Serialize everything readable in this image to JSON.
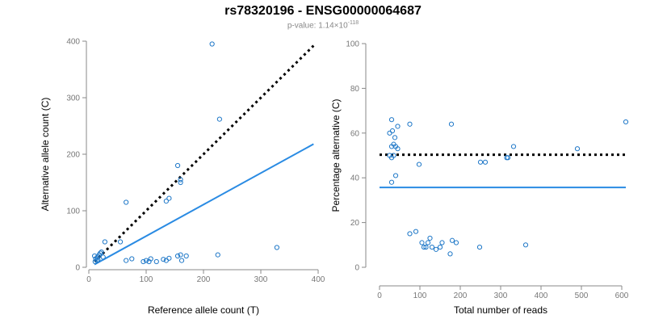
{
  "title": "rs78320196 - ENSG00000064687",
  "subtitle": {
    "prefix": "p-value: 1.14×10",
    "exponent": "-118"
  },
  "colors": {
    "points": "#1f78c8",
    "fit_line": "#2a8be3",
    "reference_line": "#000000",
    "axis": "#888888"
  },
  "chart_data": [
    {
      "type": "scatter",
      "xlabel": "Reference allele count (T)",
      "ylabel": "Alternative allele count (C)",
      "xlim": [
        0,
        400
      ],
      "ylim": [
        0,
        400
      ],
      "xticks": [
        "0",
        "100",
        "200",
        "300",
        "400"
      ],
      "yticks": [
        "0",
        "100",
        "200",
        "300",
        "400"
      ],
      "points": [
        [
          215,
          395
        ],
        [
          228,
          262
        ],
        [
          155,
          180
        ],
        [
          160,
          155
        ],
        [
          160,
          150
        ],
        [
          140,
          122
        ],
        [
          135,
          117
        ],
        [
          65,
          115
        ],
        [
          28,
          45
        ],
        [
          55,
          45
        ],
        [
          10,
          20
        ],
        [
          12,
          15
        ],
        [
          15,
          18
        ],
        [
          18,
          22
        ],
        [
          20,
          25
        ],
        [
          22,
          27
        ],
        [
          14,
          12
        ],
        [
          11,
          10
        ],
        [
          16,
          13
        ],
        [
          25,
          18
        ],
        [
          65,
          12
        ],
        [
          75,
          15
        ],
        [
          95,
          10
        ],
        [
          100,
          12
        ],
        [
          105,
          10
        ],
        [
          108,
          15
        ],
        [
          118,
          10
        ],
        [
          130,
          14
        ],
        [
          135,
          12
        ],
        [
          140,
          16
        ],
        [
          155,
          20
        ],
        [
          160,
          22
        ],
        [
          162,
          12
        ],
        [
          170,
          20
        ],
        [
          225,
          22
        ],
        [
          328,
          35
        ]
      ],
      "lines": [
        {
          "style": "dotted",
          "color": "#000000",
          "x": [
            10,
            392
          ],
          "y": [
            10,
            392
          ]
        },
        {
          "style": "solid",
          "color": "#2a8be3",
          "x": [
            10,
            392
          ],
          "y": [
            5,
            218
          ]
        }
      ]
    },
    {
      "type": "scatter",
      "xlabel": "Total number of reads",
      "ylabel": "Percentage alternative (C)",
      "xlim": [
        0,
        600
      ],
      "ylim": [
        0,
        100
      ],
      "xticks": [
        "0",
        "100",
        "200",
        "300",
        "400",
        "500",
        "600"
      ],
      "yticks": [
        "0",
        "20",
        "40",
        "60",
        "80",
        "100"
      ],
      "points": [
        [
          30,
          66
        ],
        [
          25,
          60
        ],
        [
          32,
          61
        ],
        [
          38,
          58
        ],
        [
          45,
          63
        ],
        [
          30,
          54
        ],
        [
          35,
          55
        ],
        [
          40,
          54
        ],
        [
          45,
          53
        ],
        [
          25,
          50
        ],
        [
          30,
          49
        ],
        [
          35,
          50
        ],
        [
          40,
          41
        ],
        [
          30,
          38
        ],
        [
          75,
          64
        ],
        [
          178,
          64
        ],
        [
          98,
          46
        ],
        [
          250,
          47
        ],
        [
          262,
          47
        ],
        [
          315,
          49
        ],
        [
          318,
          49
        ],
        [
          332,
          54
        ],
        [
          490,
          53
        ],
        [
          610,
          65
        ],
        [
          75,
          15
        ],
        [
          90,
          16
        ],
        [
          105,
          11
        ],
        [
          110,
          9
        ],
        [
          115,
          9
        ],
        [
          120,
          11
        ],
        [
          125,
          13
        ],
        [
          130,
          9
        ],
        [
          140,
          8
        ],
        [
          150,
          9
        ],
        [
          155,
          11
        ],
        [
          175,
          6
        ],
        [
          180,
          12
        ],
        [
          190,
          11
        ],
        [
          248,
          9
        ],
        [
          362,
          10
        ]
      ],
      "lines": [
        {
          "style": "dotted",
          "color": "#000000",
          "x": [
            0,
            610
          ],
          "y": [
            50.3,
            50.3
          ]
        },
        {
          "style": "solid",
          "color": "#2a8be3",
          "x": [
            0,
            610
          ],
          "y": [
            35.7,
            35.7
          ]
        }
      ]
    }
  ]
}
